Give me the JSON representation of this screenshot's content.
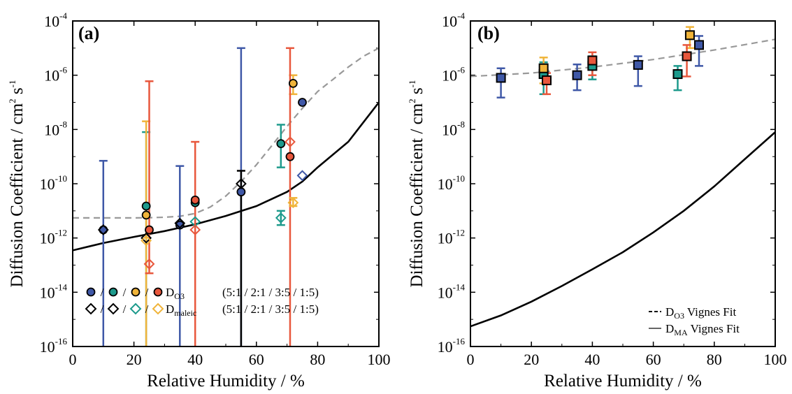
{
  "colors": {
    "blue": "#3f58a7",
    "teal": "#1d9a8c",
    "yellow": "#f0b43a",
    "red": "#e8573c",
    "dash": "#999999",
    "black": "#000000"
  },
  "chart_data": [
    {
      "panel_label": "(a)",
      "type": "scatter",
      "ylabel_main": "Diffusion Coefficient / cm",
      "ylabel_sup": "2",
      "ylabel_unit": "s",
      "ylabel_unit_sup": "-1",
      "xlabel": "Relative Humidity / %",
      "xlim": [
        0,
        100
      ],
      "ylim_exp": [
        -16,
        -4
      ],
      "x_ticks": [
        "0",
        "20",
        "40",
        "60",
        "80",
        "100"
      ],
      "y_tick_exps": [
        "-16",
        "-14",
        "-12",
        "-10",
        "-8",
        "-6",
        "-4"
      ],
      "y_scale": "log",
      "grid": false,
      "legend": {
        "position": "bottom-left",
        "rows": [
          {
            "marker": "circle",
            "sym": "D",
            "sub": "O3",
            "ratios": "(5:1 / 2:1 / 3:5 / 1:5)"
          },
          {
            "marker": "diamond",
            "sym": "D",
            "sub": "maleic",
            "ratios": "(5:1 / 2:1 / 3:5 / 1:5)"
          }
        ],
        "sep": "/"
      },
      "series": [
        {
          "marker": "circle",
          "color": "#3f58a7",
          "points": [
            {
              "x": 10,
              "y": 2e-12,
              "lo": 1e-16,
              "hi": 7e-10
            },
            {
              "x": 35,
              "y": 3e-12,
              "lo": 1e-16,
              "hi": 4.5e-10
            },
            {
              "x": 55,
              "y": 5e-11,
              "lo": 1e-16,
              "hi": 1e-05
            },
            {
              "x": 75,
              "y": 1e-07
            }
          ]
        },
        {
          "marker": "circle",
          "color": "#1d9a8c",
          "points": [
            {
              "x": 24,
              "y": 1.5e-11,
              "lo": 1e-16,
              "hi": 8e-09
            },
            {
              "x": 40,
              "y": 2e-11
            },
            {
              "x": 68,
              "y": 3e-09,
              "lo": 4e-10,
              "hi": 1.5e-08
            }
          ]
        },
        {
          "marker": "circle",
          "color": "#f0b43a",
          "points": [
            {
              "x": 24,
              "y": 7e-12,
              "lo": 1e-16,
              "hi": 2e-08
            },
            {
              "x": 72,
              "y": 5e-07,
              "lo": 2e-07,
              "hi": 1e-06
            }
          ]
        },
        {
          "marker": "circle",
          "color": "#e8573c",
          "points": [
            {
              "x": 25,
              "y": 2e-12,
              "lo": 5e-14,
              "hi": 6e-07
            },
            {
              "x": 40,
              "y": 2.5e-11,
              "lo": 1e-16,
              "hi": 3.5e-09
            },
            {
              "x": 71,
              "y": 1e-09,
              "lo": 1e-16,
              "hi": 1e-05
            }
          ]
        },
        {
          "marker": "diamond",
          "color": "#000000",
          "points": [
            {
              "x": 10,
              "y": 2e-12
            },
            {
              "x": 35,
              "y": 3.5e-12
            },
            {
              "x": 55,
              "y": 1e-10,
              "lo": 1e-16,
              "hi": 3e-10
            }
          ]
        },
        {
          "marker": "diamond",
          "color": "#000000",
          "points": [
            {
              "x": 24,
              "y": 1e-12
            }
          ]
        },
        {
          "marker": "diamond",
          "color": "#1d9a8c",
          "points": [
            {
              "x": 40,
              "y": 4e-12
            },
            {
              "x": 68,
              "y": 5.5e-12,
              "lo": 3e-12,
              "hi": 1e-11
            }
          ]
        },
        {
          "marker": "diamond",
          "color": "#f0b43a",
          "points": [
            {
              "x": 24,
              "y": 8e-13
            },
            {
              "x": 72,
              "y": 2e-11,
              "lo": 1.5e-11,
              "hi": 3e-11
            }
          ]
        },
        {
          "marker": "diamond",
          "color": "#e8573c",
          "points": [
            {
              "x": 25,
              "y": 1.1e-13
            },
            {
              "x": 40,
              "y": 2e-12
            },
            {
              "x": 71,
              "y": 3.5e-09
            }
          ]
        },
        {
          "marker": "diamond",
          "color": "#3f58a7",
          "points": [
            {
              "x": 75,
              "y": 2e-10
            }
          ]
        }
      ],
      "curves": [
        {
          "style": "dashed",
          "color": "#999999",
          "x": [
            0,
            10,
            20,
            25,
            30,
            35,
            40,
            45,
            50,
            55,
            60,
            65,
            70,
            75,
            80,
            85,
            90,
            95,
            100
          ],
          "y": [
            5.5e-12,
            5.5e-12,
            5.5e-12,
            5.6e-12,
            5.8e-12,
            6.3e-12,
            8e-12,
            1.4e-11,
            3.5e-11,
            1.2e-10,
            5e-10,
            2.5e-09,
            1.3e-08,
            6e-08,
            2.5e-07,
            7e-07,
            2e-06,
            5e-06,
            1e-05
          ]
        },
        {
          "style": "solid",
          "color": "#000000",
          "x": [
            0,
            10,
            20,
            30,
            40,
            50,
            60,
            70,
            75,
            80,
            90,
            100
          ],
          "y": [
            3.5e-13,
            6.5e-13,
            1.1e-12,
            1.8e-12,
            3.2e-12,
            6.5e-12,
            1.5e-11,
            5e-11,
            1.2e-10,
            4e-10,
            3.5e-09,
            1e-07
          ]
        }
      ]
    },
    {
      "panel_label": "(b)",
      "type": "scatter",
      "ylabel_main": "Diffusion Coefficient / cm",
      "ylabel_sup": "2",
      "ylabel_unit": "s",
      "ylabel_unit_sup": "-1",
      "xlabel": "Relative Humidity / %",
      "xlim": [
        0,
        100
      ],
      "ylim_exp": [
        -16,
        -4
      ],
      "x_ticks": [
        "0",
        "20",
        "40",
        "60",
        "80",
        "100"
      ],
      "y_tick_exps": [
        "-16",
        "-14",
        "-12",
        "-10",
        "-8",
        "-6",
        "-4"
      ],
      "y_scale": "log",
      "grid": false,
      "legend": {
        "position": "bottom-right",
        "rows": [
          {
            "line": "dashed",
            "sym": "D",
            "sub": "O3",
            "text": "Vignes Fit"
          },
          {
            "line": "solid",
            "sym": "D",
            "sub": "MA",
            "text": "Vignes Fit"
          }
        ]
      },
      "series": [
        {
          "marker": "square",
          "color": "#3f58a7",
          "points": [
            {
              "x": 10,
              "y": 8e-07,
              "lo": 1.5e-07,
              "hi": 1.8e-06
            },
            {
              "x": 35,
              "y": 1e-06,
              "lo": 2.8e-07,
              "hi": 2.5e-06
            },
            {
              "x": 55,
              "y": 2.4e-06,
              "lo": 4e-07,
              "hi": 5e-06
            },
            {
              "x": 75,
              "y": 1.3e-05,
              "lo": 2.2e-06,
              "hi": 2.8e-05
            }
          ]
        },
        {
          "marker": "square",
          "color": "#1d9a8c",
          "points": [
            {
              "x": 24,
              "y": 1.1e-06,
              "lo": 2e-07,
              "hi": 3e-06
            },
            {
              "x": 40,
              "y": 2.2e-06,
              "lo": 7e-07,
              "hi": 5e-06
            },
            {
              "x": 68,
              "y": 1.1e-06,
              "lo": 2.8e-07,
              "hi": 2.2e-06
            }
          ]
        },
        {
          "marker": "square",
          "color": "#f0b43a",
          "points": [
            {
              "x": 24,
              "y": 1.8e-06,
              "lo": 5e-07,
              "hi": 4.5e-06
            },
            {
              "x": 72,
              "y": 3e-05,
              "lo": 1e-05,
              "hi": 6e-05
            }
          ]
        },
        {
          "marker": "square",
          "color": "#e8573c",
          "points": [
            {
              "x": 25,
              "y": 6.5e-07,
              "lo": 2e-07,
              "hi": 1.2e-06
            },
            {
              "x": 40,
              "y": 3.5e-06,
              "lo": 1e-06,
              "hi": 7e-06
            },
            {
              "x": 71,
              "y": 5e-06,
              "lo": 9e-07,
              "hi": 1.3e-05
            }
          ]
        }
      ],
      "curves": [
        {
          "style": "dashed",
          "color": "#999999",
          "x": [
            0,
            20,
            40,
            60,
            80,
            100
          ],
          "y": [
            9e-07,
            1.2e-06,
            2e-06,
            3.8e-06,
            8.5e-06,
            2.1e-05
          ]
        },
        {
          "style": "solid",
          "color": "#000000",
          "x": [
            0,
            10,
            20,
            30,
            40,
            50,
            60,
            70,
            80,
            90,
            100
          ],
          "y": [
            5.5e-16,
            1.4e-15,
            4.5e-15,
            1.7e-14,
            7e-14,
            3e-13,
            1.6e-12,
            1e-11,
            8e-11,
            8e-10,
            8e-09
          ]
        }
      ]
    }
  ]
}
